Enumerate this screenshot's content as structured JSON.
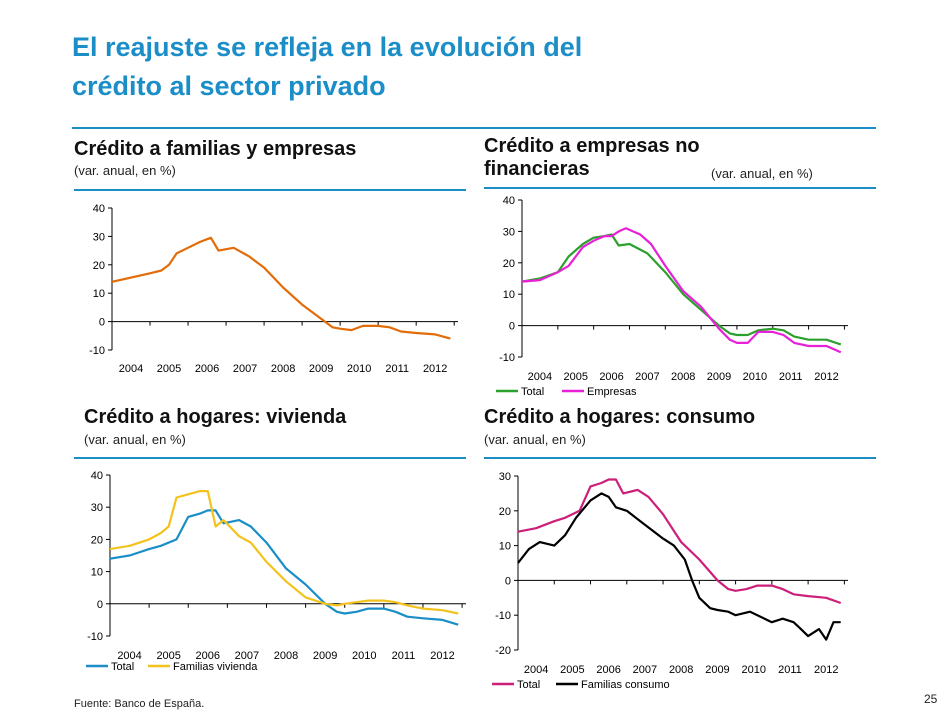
{
  "page": {
    "title_line1": "El reajuste se refleja en la evolución del",
    "title_line2": "crédito al sector privado",
    "source": "Fuente: Banco de España.",
    "page_number": "25",
    "accent_color": "#1b8ec8"
  },
  "panels": {
    "p1": {
      "title": "Crédito a familias y empresas",
      "subtitle": "(var. anual, en %)"
    },
    "p2": {
      "title_line1": "Crédito a empresas no",
      "title_line2": "financieras",
      "subtitle": "(var. anual, en %)"
    },
    "p3": {
      "title": "Crédito a hogares: vivienda",
      "subtitle": "(var. anual, en %)"
    },
    "p4": {
      "title": "Crédito a hogares: consumo",
      "subtitle": "(var. anual, en %)"
    }
  },
  "chart_data": [
    {
      "type": "line",
      "ylim": [
        -10,
        40
      ],
      "yticks": [
        "-10",
        "0",
        "10",
        "20",
        "30",
        "40"
      ],
      "xlim": [
        2004,
        2013.1
      ],
      "xticks": [
        "2004",
        "2005",
        "2006",
        "2007",
        "2008",
        "2009",
        "2010",
        "2011",
        "2012"
      ],
      "grid": false,
      "legend": "none",
      "series": [
        {
          "name": "",
          "color": "#e36c09",
          "x": [
            2004,
            2004.5,
            2005,
            2005.3,
            2005.5,
            2005.7,
            2006,
            2006.3,
            2006.5,
            2006.6,
            2006.8,
            2007.2,
            2007.6,
            2008,
            2008.5,
            2009,
            2009.5,
            2009.8,
            2010,
            2010.3,
            2010.6,
            2011,
            2011.3,
            2011.6,
            2012,
            2012.5,
            2012.9
          ],
          "y": [
            14,
            15.5,
            17,
            18,
            20,
            24,
            26,
            28,
            29,
            29.5,
            25,
            26,
            23,
            19,
            12,
            6,
            1,
            -2,
            -2.5,
            -3,
            -1.5,
            -1.5,
            -2,
            -3.5,
            -4,
            -4.5,
            -6
          ]
        }
      ]
    },
    {
      "type": "line",
      "ylim": [
        -10,
        40
      ],
      "yticks": [
        "-10",
        "0",
        "10",
        "20",
        "30",
        "40"
      ],
      "xlim": [
        2004,
        2013.1
      ],
      "xticks": [
        "2004",
        "2005",
        "2006",
        "2007",
        "2008",
        "2009",
        "2010",
        "2011",
        "2012"
      ],
      "grid": false,
      "legend": "bottom",
      "series": [
        {
          "name": "Total",
          "color": "#2ca02c",
          "x": [
            2004,
            2004.5,
            2005,
            2005.3,
            2005.7,
            2006,
            2006.3,
            2006.5,
            2006.7,
            2007,
            2007.5,
            2008,
            2008.5,
            2009,
            2009.5,
            2009.8,
            2010,
            2010.3,
            2010.6,
            2011,
            2011.3,
            2011.6,
            2012,
            2012.5,
            2012.9
          ],
          "y": [
            14,
            15,
            17,
            22,
            26,
            28,
            28.5,
            29,
            25.5,
            26,
            23,
            17,
            10,
            5,
            0,
            -2.5,
            -3,
            -3,
            -1.5,
            -1,
            -1.5,
            -3.5,
            -4.5,
            -4.5,
            -6
          ]
        },
        {
          "name": "Empresas",
          "color": "#e820d8",
          "x": [
            2004,
            2004.5,
            2005,
            2005.3,
            2005.7,
            2006,
            2006.3,
            2006.5,
            2006.7,
            2006.9,
            2007.3,
            2007.6,
            2008,
            2008.5,
            2009,
            2009.5,
            2009.8,
            2010,
            2010.3,
            2010.6,
            2011,
            2011.3,
            2011.6,
            2012,
            2012.5,
            2012.9
          ],
          "y": [
            14,
            14.5,
            17,
            19,
            25,
            27,
            28.5,
            28.5,
            30,
            31,
            29,
            26,
            19,
            11,
            6,
            -1,
            -4.5,
            -5.5,
            -5.5,
            -2,
            -2,
            -3,
            -5.5,
            -6.5,
            -6.5,
            -8.5
          ]
        }
      ]
    },
    {
      "type": "line",
      "ylim": [
        -10,
        40
      ],
      "yticks": [
        "-10",
        "0",
        "10",
        "20",
        "30",
        "40"
      ],
      "xlim": [
        2004,
        2013.1
      ],
      "xticks": [
        "2004",
        "2005",
        "2006",
        "2007",
        "2008",
        "2009",
        "2010",
        "2011",
        "2012"
      ],
      "grid": false,
      "legend": "bottom",
      "series": [
        {
          "name": "Total",
          "color": "#1b8ec8",
          "x": [
            2004,
            2004.5,
            2005,
            2005.3,
            2005.7,
            2006,
            2006.3,
            2006.5,
            2006.7,
            2006.9,
            2007.3,
            2007.6,
            2008,
            2008.5,
            2009,
            2009.5,
            2009.8,
            2010,
            2010.3,
            2010.6,
            2011,
            2011.3,
            2011.6,
            2012,
            2012.5,
            2012.9
          ],
          "y": [
            14,
            15,
            17,
            18,
            20,
            27,
            28,
            29,
            29,
            25,
            26,
            24,
            19,
            11,
            6,
            0,
            -2.5,
            -3,
            -2.5,
            -1.5,
            -1.5,
            -2.5,
            -4,
            -4.5,
            -5,
            -6.5
          ]
        },
        {
          "name": "Familias vivienda",
          "color": "#f4c21c",
          "x": [
            2004,
            2004.5,
            2005,
            2005.3,
            2005.5,
            2005.7,
            2006,
            2006.3,
            2006.5,
            2006.7,
            2006.9,
            2007.3,
            2007.6,
            2008,
            2008.5,
            2009,
            2009.5,
            2009.8,
            2010,
            2010.3,
            2010.6,
            2011,
            2011.3,
            2011.6,
            2012,
            2012.5,
            2012.9
          ],
          "y": [
            17,
            18,
            20,
            22,
            24,
            33,
            34,
            35,
            35,
            24,
            26,
            21,
            19,
            13,
            7,
            2,
            0,
            -0.5,
            0,
            0.5,
            1,
            1,
            0.5,
            -0.5,
            -1.5,
            -2,
            -3
          ]
        }
      ]
    },
    {
      "type": "line",
      "ylim": [
        -20,
        30
      ],
      "yticks": [
        "-20",
        "-10",
        "0",
        "10",
        "20",
        "30"
      ],
      "xlim": [
        2004,
        2013.1
      ],
      "xticks": [
        "2004",
        "2005",
        "2006",
        "2007",
        "2008",
        "2009",
        "2010",
        "2011",
        "2012"
      ],
      "grid": false,
      "legend": "bottom",
      "series": [
        {
          "name": "Total",
          "color": "#cc1f7a",
          "x": [
            2004,
            2004.5,
            2005,
            2005.3,
            2005.7,
            2006,
            2006.3,
            2006.5,
            2006.7,
            2006.9,
            2007.3,
            2007.6,
            2008,
            2008.5,
            2009,
            2009.5,
            2009.8,
            2010,
            2010.3,
            2010.6,
            2011,
            2011.3,
            2011.6,
            2012,
            2012.5,
            2012.9
          ],
          "y": [
            14,
            15,
            17,
            18,
            20,
            27,
            28,
            29,
            29,
            25,
            26,
            24,
            19,
            11,
            6,
            0,
            -2.5,
            -3,
            -2.5,
            -1.5,
            -1.5,
            -2.5,
            -4,
            -4.5,
            -5,
            -6.5
          ]
        },
        {
          "name": "Familias consumo",
          "color": "#000000",
          "x": [
            2004,
            2004.3,
            2004.6,
            2005,
            2005.3,
            2005.6,
            2006,
            2006.3,
            2006.5,
            2006.7,
            2007,
            2007.5,
            2008,
            2008.3,
            2008.6,
            2008.8,
            2009,
            2009.3,
            2009.5,
            2009.8,
            2010,
            2010.4,
            2010.8,
            2011,
            2011.3,
            2011.6,
            2011.8,
            2012,
            2012.3,
            2012.5,
            2012.7,
            2012.9
          ],
          "y": [
            5,
            9,
            11,
            10,
            13,
            18,
            23,
            25,
            24,
            21,
            20,
            16,
            12,
            10,
            6,
            0,
            -5,
            -8,
            -8.5,
            -9,
            -10,
            -9,
            -11,
            -12,
            -11,
            -12,
            -14,
            -16,
            -14,
            -17,
            -12,
            -12
          ]
        }
      ]
    }
  ]
}
